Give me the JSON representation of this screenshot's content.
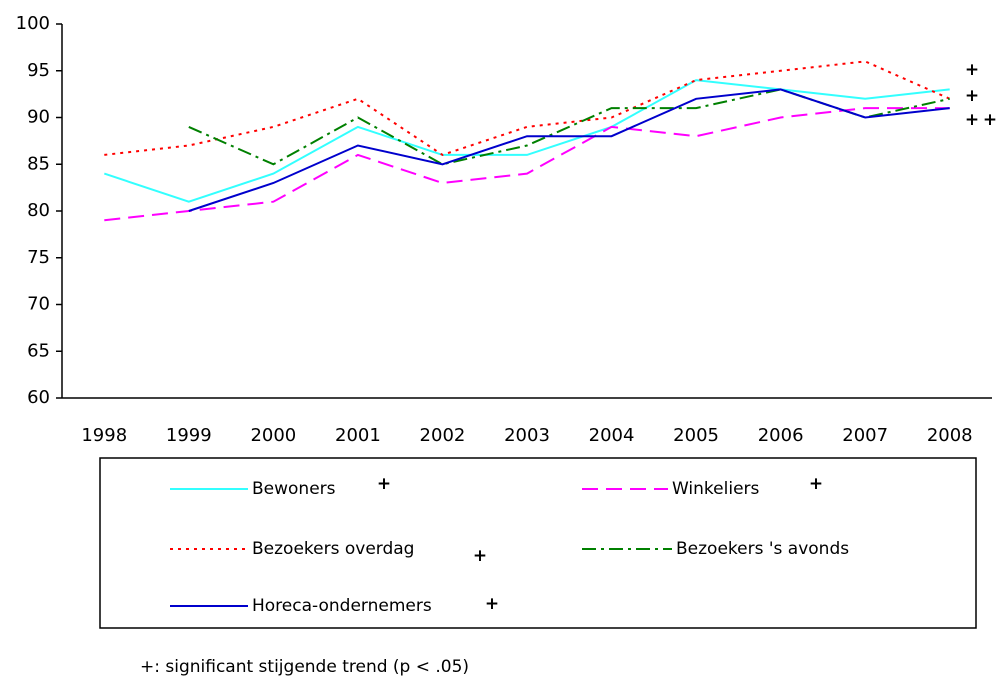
{
  "chart_data": {
    "type": "line",
    "categories": [
      "1998",
      "1999",
      "2000",
      "2001",
      "2002",
      "2003",
      "2004",
      "2005",
      "2006",
      "2007",
      "2008"
    ],
    "series": [
      {
        "name": "Bewoners",
        "color": "#33ffff",
        "style": "solid",
        "trend_marker": "+",
        "values": [
          84,
          81,
          84,
          89,
          86,
          86,
          89,
          94,
          93,
          92,
          93
        ]
      },
      {
        "name": "Winkeliers",
        "color": "#ff00ff",
        "style": "dashed",
        "trend_marker": "+",
        "values": [
          79,
          80,
          81,
          86,
          83,
          84,
          89,
          88,
          90,
          91,
          91
        ]
      },
      {
        "name": "Bezoekers overdag",
        "color": "#ff0000",
        "style": "dotted",
        "trend_marker": "+",
        "values": [
          86,
          87,
          89,
          92,
          86,
          89,
          90,
          94,
          95,
          96,
          92
        ]
      },
      {
        "name": "Bezoekers 's avonds",
        "color": "#008000",
        "style": "dashdot",
        "values": [
          null,
          89,
          85,
          90,
          85,
          87,
          91,
          91,
          93,
          90,
          92
        ]
      },
      {
        "name": "Horeca-ondernemers",
        "color": "#0000cc",
        "style": "solid",
        "trend_marker": "+",
        "values": [
          null,
          80,
          83,
          87,
          85,
          88,
          88,
          92,
          93,
          90,
          91
        ]
      }
    ],
    "ylim": [
      60,
      100
    ],
    "yticks": [
      60,
      65,
      70,
      75,
      80,
      85,
      90,
      95,
      100
    ],
    "grid": false,
    "note": "+: significant stijgende trend (p < .05)"
  }
}
